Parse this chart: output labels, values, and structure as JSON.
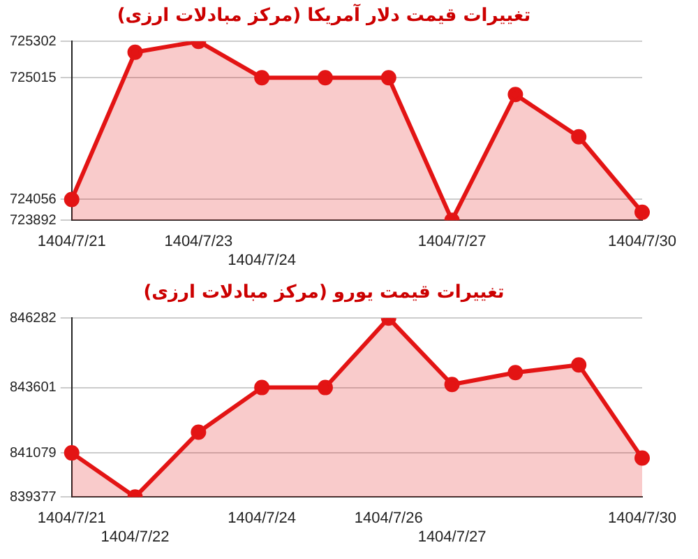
{
  "chart_data": [
    {
      "type": "area",
      "title": "تغییرات قیمت دلار آمریکا (مرکز مبادلات ارزی)",
      "categories": [
        "1404/7/21",
        null,
        "1404/7/23",
        "1404/7/24",
        null,
        null,
        "1404/7/27",
        null,
        null,
        "1404/7/30"
      ],
      "series": [
        {
          "color": "#e31414",
          "values": [
            724056,
            725216,
            725302,
            725015,
            725015,
            725015,
            723892,
            724883,
            724550,
            723955
          ]
        }
      ],
      "ylim": [
        723892,
        725302
      ],
      "yticks": [
        723892,
        724056,
        725015,
        725302
      ],
      "grid": "y",
      "legend": false,
      "marker": "circle"
    },
    {
      "type": "area",
      "title": "تغییرات قیمت یورو (مرکز مبادلات ارزی)",
      "categories": [
        "1404/7/21",
        "1404/7/22",
        null,
        "1404/7/24",
        null,
        "1404/7/26",
        "1404/7/27",
        null,
        null,
        "1404/7/30"
      ],
      "series": [
        {
          "color": "#e31414",
          "values": [
            841079,
            839377,
            841877,
            843601,
            843601,
            846282,
            843717,
            844177,
            844476,
            840877
          ]
        }
      ],
      "ylim": [
        839377,
        846282
      ],
      "yticks": [
        839377,
        841079,
        843601,
        846282
      ],
      "grid": "y",
      "legend": false,
      "marker": "circle"
    }
  ]
}
